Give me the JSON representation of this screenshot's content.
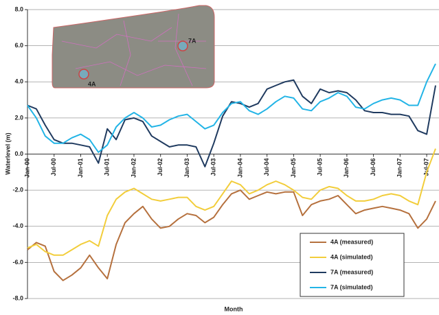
{
  "chart_data": {
    "type": "line",
    "y_label": "Waterlevel (m)",
    "x_label": "Month",
    "annotations": [
      "4A",
      "7A"
    ],
    "categories": [
      "Jan-00",
      null,
      null,
      "Jul-00",
      null,
      null,
      "Jan-01",
      null,
      null,
      "Jul-01",
      null,
      null,
      "Jan-02",
      null,
      null,
      "Jul-02",
      null,
      null,
      "Jan-03",
      null,
      null,
      "Jul-03",
      null,
      null,
      "Jan-04",
      null,
      null,
      "Jul-04",
      null,
      null,
      "Jan-05",
      null,
      null,
      "Jul-05",
      null,
      null,
      "Jan-06",
      null,
      null,
      "Jul-06",
      null,
      null,
      "Jan-07",
      null,
      null,
      "Jul-07",
      null
    ],
    "ylim": [
      -8,
      8
    ],
    "yticks": [
      {
        "value": 8,
        "label": "8.0"
      },
      {
        "value": 6,
        "label": "6.0"
      },
      {
        "value": 4,
        "label": "4.0"
      },
      {
        "value": 2,
        "label": "2.0"
      },
      {
        "value": 0,
        "label": "0.0"
      },
      {
        "value": -2,
        "label": "-2.0"
      },
      {
        "value": -4,
        "label": "-4.0"
      },
      {
        "value": -6,
        "label": "-6.0"
      },
      {
        "value": -8,
        "label": "-8.0"
      }
    ],
    "grid": true,
    "legend": "lower right",
    "series": [
      {
        "name": "4A (measured)",
        "color": "#b5703d",
        "values": [
          -5.3,
          -4.9,
          -5.1,
          -6.5,
          -7.0,
          -6.7,
          -6.3,
          -5.6,
          -6.3,
          -6.9,
          -5.0,
          -3.8,
          -3.3,
          -2.9,
          -3.6,
          -4.1,
          -4.0,
          -3.6,
          -3.3,
          -3.4,
          -3.8,
          -3.5,
          -2.8,
          -2.2,
          -2.0,
          -2.5,
          -2.3,
          -2.1,
          -2.2,
          -2.1,
          -2.1,
          -3.4,
          -2.8,
          -2.6,
          -2.5,
          -2.3,
          -2.8,
          -3.3,
          -3.1,
          -3.0,
          -2.9,
          -3.0,
          -3.1,
          -3.3,
          -4.1,
          -3.6,
          -2.6
        ]
      },
      {
        "name": "4A (simulated)",
        "color": "#f2cd3a",
        "values": [
          -5.2,
          -5.0,
          -5.4,
          -5.6,
          -5.6,
          -5.3,
          -5.0,
          -4.8,
          -5.1,
          -3.4,
          -2.5,
          -2.1,
          -1.9,
          -2.2,
          -2.5,
          -2.6,
          -2.5,
          -2.4,
          -2.4,
          -2.9,
          -3.1,
          -2.9,
          -2.2,
          -1.5,
          -1.7,
          -2.2,
          -2.0,
          -1.7,
          -1.5,
          -1.7,
          -2.0,
          -2.4,
          -2.5,
          -2.0,
          -1.8,
          -1.9,
          -2.3,
          -2.6,
          -2.6,
          -2.5,
          -2.3,
          -2.2,
          -2.3,
          -2.6,
          -2.8,
          -1.0,
          0.3
        ]
      },
      {
        "name": "7A (measured)",
        "color": "#1f3a5f",
        "values": [
          2.7,
          2.5,
          1.6,
          0.8,
          0.6,
          0.6,
          0.5,
          0.4,
          -0.5,
          1.4,
          0.8,
          1.9,
          2.0,
          1.8,
          1.0,
          0.7,
          0.4,
          0.5,
          0.5,
          0.4,
          -0.7,
          0.6,
          2.1,
          2.9,
          2.8,
          2.6,
          2.8,
          3.6,
          3.8,
          4.0,
          4.1,
          3.2,
          2.8,
          3.6,
          3.4,
          3.5,
          3.4,
          3.0,
          2.4,
          2.3,
          2.3,
          2.2,
          2.2,
          2.1,
          1.3,
          1.1,
          3.8
        ]
      },
      {
        "name": "7A (simulated)",
        "color": "#22b4e6",
        "values": [
          2.7,
          2.0,
          1.0,
          0.6,
          0.6,
          0.9,
          1.1,
          0.8,
          0.1,
          0.5,
          1.5,
          2.0,
          2.3,
          2.0,
          1.5,
          1.6,
          1.9,
          2.1,
          2.2,
          1.8,
          1.4,
          1.6,
          2.3,
          2.8,
          2.9,
          2.4,
          2.2,
          2.5,
          2.9,
          3.2,
          3.1,
          2.5,
          2.4,
          2.9,
          3.1,
          3.4,
          3.2,
          2.6,
          2.5,
          2.8,
          3.0,
          3.1,
          3.0,
          2.7,
          2.7,
          4.0,
          5.0
        ]
      }
    ]
  }
}
